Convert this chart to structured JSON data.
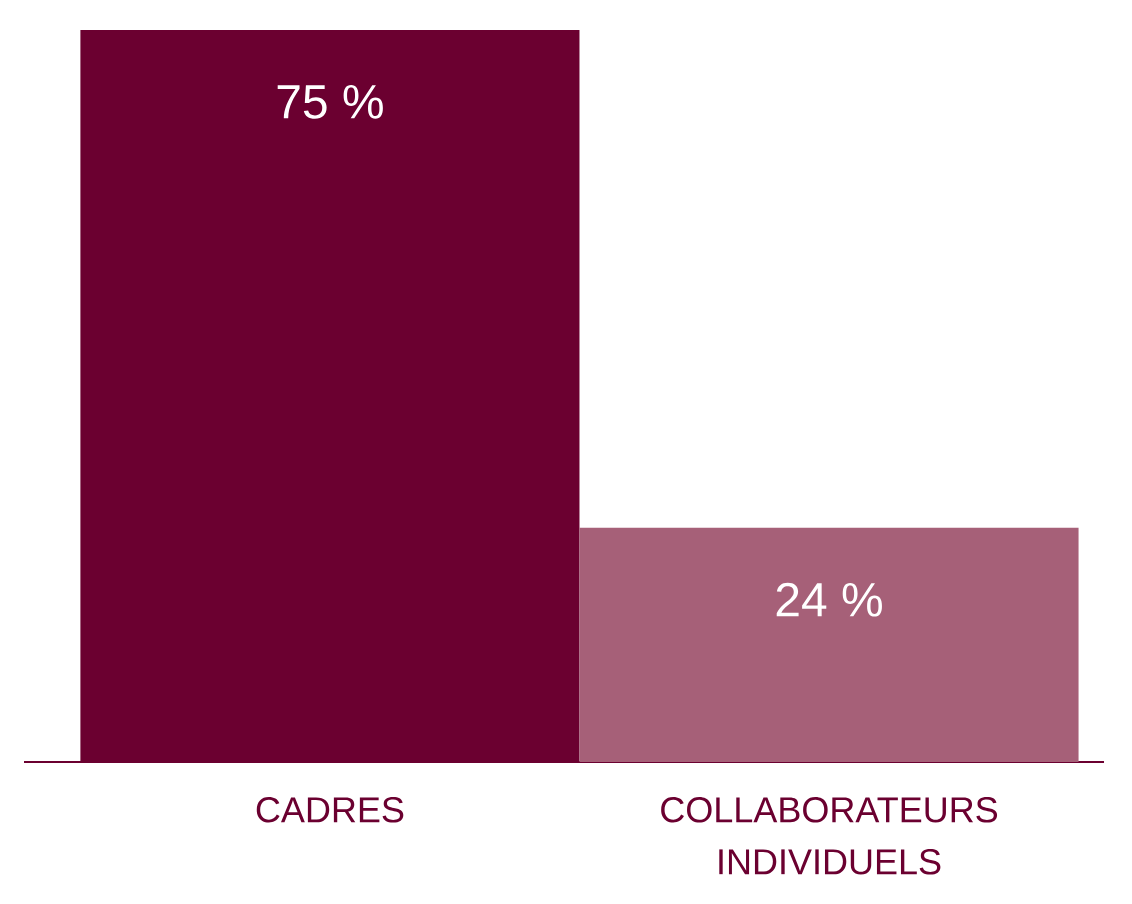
{
  "chart_data": {
    "type": "bar",
    "categories": [
      "CADRES",
      "COLLABORATEURS INDIVIDUELS"
    ],
    "values": [
      75,
      24
    ],
    "colors": [
      "#6b0030",
      "#a66078"
    ],
    "value_labels": [
      "75 %",
      "24 %"
    ]
  }
}
